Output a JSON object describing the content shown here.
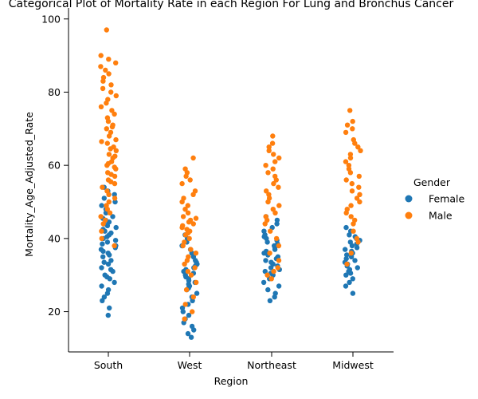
{
  "chart_data": {
    "type": "scatter",
    "title": "Categorical Plot of Mortality Rate in each Region For Lung and Bronchus Cancer",
    "xlabel": "Region",
    "ylabel": "Mortality_Age_Adjusted_Rate",
    "categories": [
      "South",
      "West",
      "Northeast",
      "Midwest"
    ],
    "y_ticks": [
      20,
      40,
      60,
      80,
      100
    ],
    "ylim": [
      9,
      103
    ],
    "grid": false,
    "legend": {
      "title": "Gender",
      "placement": "right"
    },
    "colors": {
      "Female": "#1f77b4",
      "Male": "#ff7f0e"
    },
    "series": [
      {
        "name": "Female",
        "values": [
          [
            19,
            21,
            23,
            24,
            25,
            26,
            27,
            28,
            29,
            29.5,
            30,
            31,
            31.5,
            32,
            33,
            33.5,
            34,
            35,
            35.5,
            36,
            36.5,
            37,
            37.5,
            38,
            38.5,
            39,
            39.5,
            40,
            40.5,
            41,
            41.5,
            42,
            42.5,
            43,
            43.5,
            44,
            44.5,
            45,
            45.5,
            46,
            47,
            48,
            49,
            50,
            51,
            52,
            53,
            54
          ],
          [
            13,
            14,
            15,
            16,
            17,
            18,
            19,
            20,
            21,
            22,
            23,
            24,
            25,
            26,
            26.5,
            27,
            27.5,
            28,
            28.5,
            29,
            29.5,
            30,
            30.5,
            31,
            31.5,
            32,
            32.5,
            33,
            33.5,
            34,
            35,
            36,
            37,
            38,
            39,
            40,
            41
          ],
          [
            23,
            24,
            25,
            26,
            27,
            28,
            29,
            30,
            30.5,
            31,
            31.5,
            32,
            32.5,
            33,
            33.5,
            34,
            34.5,
            35,
            35.5,
            36,
            36.5,
            37,
            37.5,
            38,
            38.5,
            39,
            39.5,
            40,
            40.5,
            41,
            42,
            43,
            44,
            45,
            46
          ],
          [
            25,
            27,
            28,
            29,
            30,
            30.5,
            31,
            31.5,
            32,
            32.5,
            33,
            33.5,
            34,
            34.5,
            35,
            35.5,
            36,
            36.5,
            37,
            37.5,
            38,
            38.5,
            39,
            39.5,
            40,
            40.5,
            41,
            42,
            43
          ]
        ]
      },
      {
        "name": "Male",
        "values": [
          [
            38,
            40,
            42,
            44,
            45,
            46,
            47,
            48,
            49,
            50,
            51,
            52,
            53,
            54,
            55,
            55.5,
            56,
            57,
            57.5,
            58,
            59,
            59.5,
            60,
            60.5,
            61,
            62,
            62.5,
            63,
            64,
            64.5,
            65,
            66,
            66.5,
            67,
            68,
            69,
            70,
            70.5,
            71,
            72,
            73,
            74,
            75,
            76,
            77,
            78,
            79,
            80,
            81,
            82,
            83,
            84,
            85,
            86,
            87,
            88,
            89,
            90,
            97
          ],
          [
            18,
            20,
            22,
            24,
            26,
            28,
            30,
            31,
            32,
            33,
            34,
            35,
            36,
            37,
            38,
            39,
            40,
            41,
            41.5,
            42,
            42.5,
            43,
            43.5,
            44,
            44.5,
            45,
            45.5,
            46,
            47,
            48,
            49,
            50,
            51,
            52,
            53,
            55,
            56,
            57,
            58,
            59,
            62
          ],
          [
            29,
            30,
            31,
            32,
            34,
            36,
            38,
            40,
            42,
            44,
            45,
            46,
            47,
            48,
            49,
            50,
            51,
            52,
            53,
            54,
            55,
            56,
            57,
            58,
            59,
            60,
            61,
            62,
            63,
            64,
            65,
            66,
            68
          ],
          [
            33,
            36,
            39,
            40,
            42,
            44,
            45,
            46,
            47,
            48,
            49,
            50,
            51,
            52,
            53,
            54,
            55,
            56,
            57,
            58,
            59,
            60,
            61,
            62,
            63,
            64,
            65,
            66,
            67,
            69,
            70,
            71,
            72,
            75
          ]
        ]
      }
    ]
  }
}
